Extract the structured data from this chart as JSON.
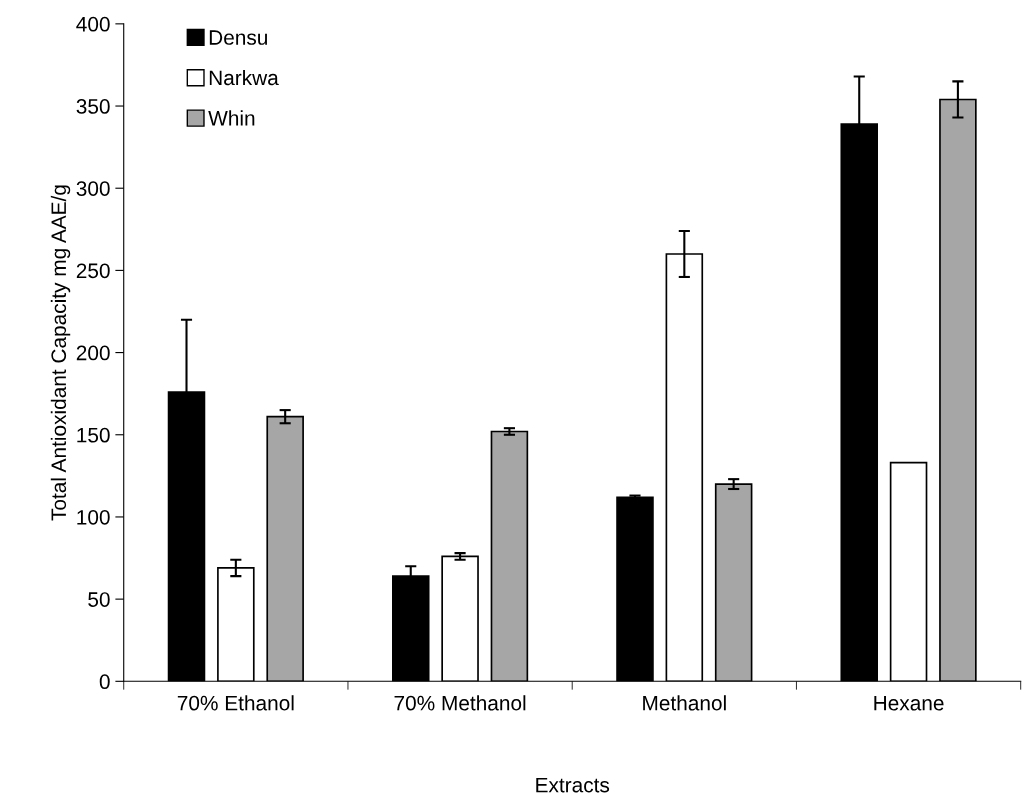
{
  "chart_data": {
    "type": "bar",
    "xlabel": "Extracts",
    "ylabel": "Total Antioxidant Capacity mg AAE/g",
    "categories": [
      "70% Ethanol",
      "70% Methanol",
      "Methanol",
      "Hexane"
    ],
    "series": [
      {
        "name": "Densu",
        "color": "#000000",
        "values": [
          176,
          64,
          112,
          339
        ],
        "errors": [
          44,
          6,
          1,
          29
        ]
      },
      {
        "name": "Narkwa",
        "color": "#ffffff",
        "values": [
          69,
          76,
          260,
          133
        ],
        "errors": [
          5,
          2,
          14,
          null
        ]
      },
      {
        "name": "Whin",
        "color": "#a6a6a6",
        "values": [
          161,
          152,
          120,
          354
        ],
        "errors": [
          4,
          2,
          3,
          11
        ]
      }
    ],
    "ylim": [
      0,
      400
    ],
    "yticks": [
      0,
      50,
      100,
      150,
      200,
      250,
      300,
      350,
      400
    ],
    "grid": false,
    "legend": "top left"
  }
}
